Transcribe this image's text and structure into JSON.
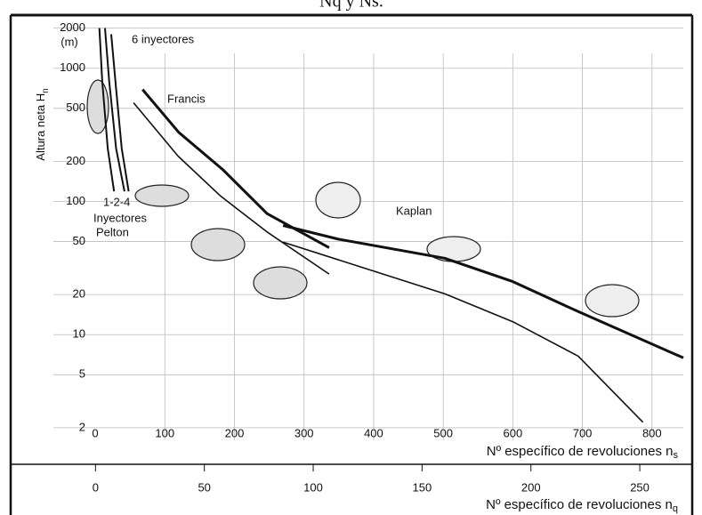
{
  "chart_data": {
    "type": "line",
    "title": "Nq y Ns.",
    "y_label": "Altura neta H",
    "y_label_sub": "n",
    "y_unit": "(m)",
    "x_label": "Nº específico de revoluciones n",
    "x_label_sub": "s",
    "x2_label": "Nº específico de revoluciones n",
    "x2_label_sub": "q",
    "log_y": true,
    "grid": true,
    "color": "#111111",
    "xlim": [
      -9,
      845
    ],
    "xticks": [
      0,
      100,
      200,
      300,
      400,
      500,
      600,
      700,
      800
    ],
    "x2lim": [
      -3,
      270
    ],
    "x2ticks": [
      0,
      50,
      100,
      150,
      200,
      250
    ],
    "ylim": [
      1.61,
      2467
    ],
    "yticks": [
      2,
      5,
      10,
      20,
      50,
      100,
      200,
      500,
      1000,
      2000
    ],
    "annotations": [
      "6 inyectores",
      "Francis",
      "Kaplan",
      "1-2-4",
      "Inyectores",
      "Pelton"
    ],
    "series": [
      {
        "x": [
          6,
          10,
          18,
          27
        ],
        "values": [
          2000,
          800,
          250,
          119
        ],
        "line_width": 2
      },
      {
        "x": [
          14,
          20,
          30,
          42
        ],
        "values": [
          2000,
          800,
          250,
          119
        ],
        "line_width": 2
      },
      {
        "x": [
          23,
          30,
          38,
          48
        ],
        "values": [
          1800,
          700,
          250,
          119
        ],
        "line_width": 2
      },
      {
        "x": [
          68,
          120,
          183,
          247,
          336
        ],
        "values": [
          693,
          330,
          174,
          81,
          45
        ],
        "line_width": 3
      },
      {
        "x": [
          55,
          119,
          180,
          247,
          336
        ],
        "values": [
          551,
          219,
          110,
          59,
          28.5
        ],
        "line_width": 1.6
      },
      {
        "x": [
          270,
          350,
          502,
          600,
          694,
          845
        ],
        "values": [
          66,
          52,
          37.5,
          25,
          14.9,
          6.7
        ],
        "line_width": 3
      },
      {
        "x": [
          270,
          400,
          502,
          600,
          694,
          787
        ],
        "values": [
          49.5,
          30,
          20.3,
          12.5,
          6.9,
          2.2
        ],
        "line_width": 1.6
      }
    ]
  }
}
